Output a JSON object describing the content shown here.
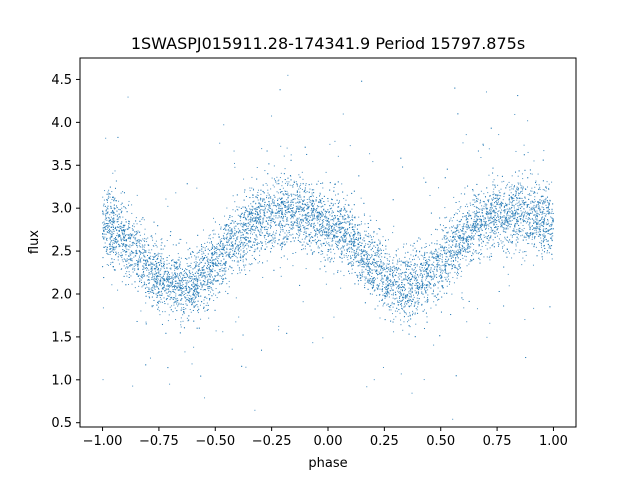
{
  "chart_data": {
    "type": "scatter",
    "title": "1SWASPJ015911.28-174341.9 Period 15797.875s",
    "xlabel": "phase",
    "ylabel": "flux",
    "xlim": [
      -1.1,
      1.1
    ],
    "ylim": [
      0.45,
      4.75
    ],
    "xticks": [
      -1.0,
      -0.75,
      -0.5,
      -0.25,
      0.0,
      0.25,
      0.5,
      0.75,
      1.0
    ],
    "xtick_labels": [
      "−1.00",
      "−0.75",
      "−0.50",
      "−0.25",
      "0.00",
      "0.25",
      "0.50",
      "0.75",
      "1.00"
    ],
    "yticks": [
      0.5,
      1.0,
      1.5,
      2.0,
      2.5,
      3.0,
      3.5,
      4.0,
      4.5
    ],
    "ytick_labels": [
      "0.5",
      "1.0",
      "1.5",
      "2.0",
      "2.5",
      "3.0",
      "3.5",
      "4.0",
      "4.5"
    ],
    "grid": false,
    "point_color": "#1f77b4",
    "series": [
      {
        "x": [
          -1.0,
          -0.95,
          -0.9,
          -0.85,
          -0.8,
          -0.75,
          -0.7,
          -0.65,
          -0.6,
          -0.55,
          -0.5,
          -0.45,
          -0.4,
          -0.35,
          -0.3,
          -0.25,
          -0.2,
          -0.15,
          -0.1,
          -0.05,
          0.0,
          0.05,
          0.1,
          0.15,
          0.2,
          0.25,
          0.3,
          0.35,
          0.4,
          0.45,
          0.5,
          0.55,
          0.6,
          0.65,
          0.7,
          0.75,
          0.8,
          0.85,
          0.9,
          0.95,
          1.0
        ],
        "y": [
          2.82,
          2.75,
          2.63,
          2.48,
          2.33,
          2.2,
          2.12,
          2.1,
          2.13,
          2.22,
          2.36,
          2.52,
          2.66,
          2.78,
          2.86,
          2.92,
          2.94,
          2.93,
          2.9,
          2.86,
          2.82,
          2.75,
          2.63,
          2.48,
          2.33,
          2.2,
          2.12,
          2.1,
          2.13,
          2.22,
          2.36,
          2.52,
          2.66,
          2.78,
          2.86,
          2.92,
          2.94,
          2.93,
          2.9,
          2.86,
          2.82
        ],
        "scatter_sd": 0.2
      }
    ]
  }
}
